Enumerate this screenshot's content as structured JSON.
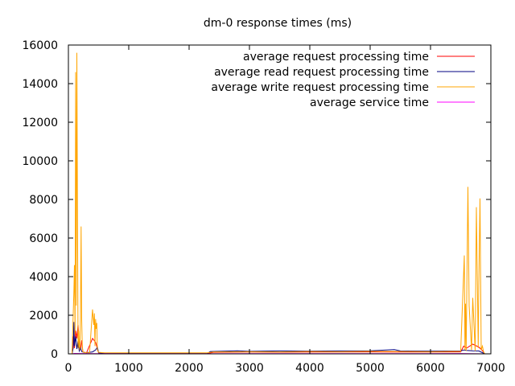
{
  "chart_data": {
    "type": "line",
    "title": "dm-0 response times (ms)",
    "xlabel": "",
    "ylabel": "",
    "xlim": [
      0,
      7000
    ],
    "ylim": [
      0,
      16000
    ],
    "x_ticks": [
      0,
      1000,
      2000,
      3000,
      4000,
      5000,
      6000,
      7000
    ],
    "y_ticks": [
      0,
      2000,
      4000,
      6000,
      8000,
      10000,
      12000,
      14000,
      16000
    ],
    "x_tick_labels": [
      "0",
      "1000",
      "2000",
      "3000",
      "4000",
      "5000",
      "6000",
      "7000"
    ],
    "y_tick_labels": [
      "0",
      "2000",
      "4000",
      "6000",
      "8000",
      "10000",
      "12000",
      "14000",
      "16000"
    ],
    "grid": false,
    "legend_position": "top-right",
    "series": [
      {
        "name": "average request processing time",
        "color": "#ff0000",
        "x": [
          60,
          80,
          100,
          120,
          140,
          160,
          180,
          200,
          220,
          240,
          300,
          400,
          450,
          500,
          600,
          1000,
          2000,
          2300,
          2400,
          3000,
          3500,
          4000,
          4500,
          5000,
          5500,
          6000,
          6500,
          6550,
          6600,
          6700,
          6800,
          6850,
          6900
        ],
        "y": [
          0,
          900,
          300,
          1200,
          800,
          1500,
          400,
          200,
          700,
          100,
          50,
          800,
          600,
          50,
          10,
          10,
          10,
          10,
          80,
          90,
          85,
          95,
          90,
          100,
          95,
          90,
          100,
          400,
          300,
          500,
          350,
          200,
          0
        ]
      },
      {
        "name": "average read request processing time",
        "color": "#000080",
        "x": [
          60,
          80,
          90,
          100,
          120,
          140,
          160,
          180,
          200,
          220,
          250,
          300,
          400,
          450,
          480,
          500,
          600,
          1000,
          2000,
          2300,
          2350,
          2800,
          3000,
          3500,
          4000,
          4500,
          5000,
          5400,
          5500,
          6000,
          6500,
          6550,
          6600,
          6700,
          6800,
          6900
        ],
        "y": [
          0,
          300,
          1650,
          400,
          900,
          250,
          700,
          150,
          300,
          120,
          80,
          60,
          100,
          200,
          350,
          50,
          20,
          15,
          10,
          10,
          120,
          160,
          130,
          150,
          140,
          150,
          160,
          220,
          150,
          140,
          150,
          200,
          180,
          160,
          150,
          0
        ]
      },
      {
        "name": "average write request processing time",
        "color": "#ffa500",
        "x": [
          60,
          90,
          100,
          110,
          120,
          130,
          140,
          150,
          160,
          170,
          180,
          190,
          200,
          210,
          220,
          230,
          240,
          260,
          300,
          350,
          400,
          420,
          430,
          440,
          450,
          460,
          470,
          480,
          500,
          600,
          1000,
          1500,
          2000,
          2300,
          2400,
          3000,
          3500,
          4000,
          4500,
          5000,
          5500,
          6000,
          6500,
          6560,
          6570,
          6580,
          6590,
          6620,
          6640,
          6680,
          6700,
          6740,
          6760,
          6790,
          6800,
          6820,
          6840,
          6860,
          6880,
          6900
        ],
        "y": [
          0,
          3200,
          4600,
          1000,
          14600,
          2500,
          15600,
          7500,
          300,
          1200,
          400,
          200,
          1900,
          6600,
          1800,
          300,
          100,
          80,
          60,
          50,
          2300,
          1500,
          2100,
          400,
          1800,
          1300,
          1600,
          200,
          80,
          50,
          50,
          50,
          50,
          50,
          100,
          110,
          100,
          120,
          110,
          130,
          120,
          110,
          130,
          5100,
          200,
          2600,
          150,
          8650,
          2500,
          200,
          2900,
          150,
          7600,
          300,
          3500,
          8050,
          200,
          400,
          100,
          0
        ]
      },
      {
        "name": "average service time",
        "color": "#ff00ff",
        "x": [
          60,
          100,
          200,
          500,
          1000,
          2000,
          3000,
          4000,
          5000,
          6000,
          6500,
          6900
        ],
        "y": [
          0,
          20,
          15,
          10,
          5,
          5,
          10,
          10,
          10,
          10,
          15,
          0
        ]
      }
    ]
  }
}
